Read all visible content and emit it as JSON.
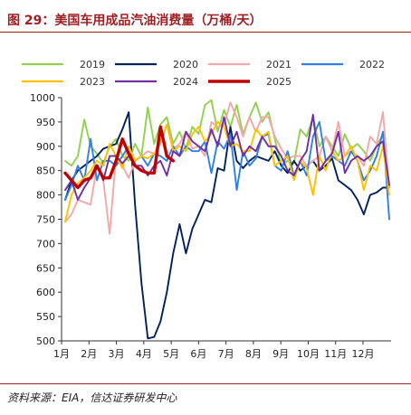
{
  "chart_data": {
    "type": "line",
    "title": "图 29：美国车用成品汽油消费量（万桶/天）",
    "x_tick_labels": [
      "1月",
      "2月",
      "3月",
      "4月",
      "5月",
      "6月",
      "7月",
      "8月",
      "9月",
      "10月",
      "11月",
      "12月"
    ],
    "y_ticks": [
      1000,
      950,
      900,
      850,
      800,
      750,
      700,
      650,
      600,
      550,
      500
    ],
    "ylim": [
      500,
      1000
    ],
    "grid": false,
    "legend_position": "top",
    "series": [
      {
        "name": "2019",
        "color": "#92D050",
        "values": [
          870,
          860,
          880,
          955,
          900,
          885,
          865,
          900,
          915,
          880,
          870,
          905,
          880,
          980,
          905,
          945,
          960,
          905,
          930,
          895,
          940,
          925,
          985,
          995,
          930,
          975,
          940,
          985,
          925,
          960,
          990,
          950,
          970,
          915,
          860,
          870,
          865,
          935,
          920,
          960,
          900,
          920,
          900,
          880,
          925,
          895,
          905,
          890,
          870,
          900,
          925,
          815
        ]
      },
      {
        "name": "2020",
        "color": "#002060",
        "values": [
          790,
          830,
          850,
          860,
          870,
          880,
          895,
          900,
          905,
          935,
          970,
          780,
          620,
          505,
          508,
          540,
          600,
          680,
          740,
          680,
          730,
          760,
          790,
          785,
          855,
          850,
          940,
          870,
          855,
          870,
          880,
          875,
          870,
          890,
          860,
          845,
          870,
          850,
          860,
          870,
          850,
          860,
          875,
          830,
          820,
          810,
          790,
          760,
          800,
          805,
          815,
          815
        ]
      },
      {
        "name": "2021",
        "color": "#F4A7A7",
        "values": [
          745,
          760,
          790,
          785,
          780,
          860,
          830,
          720,
          880,
          860,
          835,
          870,
          880,
          890,
          885,
          905,
          945,
          895,
          905,
          930,
          895,
          900,
          880,
          950,
          940,
          945,
          990,
          960,
          920,
          960,
          930,
          960,
          960,
          920,
          895,
          875,
          880,
          880,
          860,
          870,
          880,
          920,
          890,
          950,
          880,
          890,
          880,
          860,
          920,
          905,
          970,
          815
        ]
      },
      {
        "name": "2022",
        "color": "#2F80E6",
        "values": [
          790,
          820,
          860,
          830,
          915,
          830,
          870,
          870,
          860,
          880,
          900,
          870,
          880,
          860,
          885,
          880,
          870,
          900,
          880,
          900,
          890,
          890,
          910,
          845,
          910,
          895,
          925,
          810,
          890,
          860,
          875,
          920,
          925,
          860,
          850,
          890,
          840,
          870,
          840,
          920,
          950,
          870,
          880,
          870,
          860,
          890,
          870,
          830,
          850,
          880,
          930,
          750
        ]
      },
      {
        "name": "2023",
        "color": "#FFC000",
        "values": [
          745,
          800,
          825,
          835,
          850,
          870,
          860,
          905,
          880,
          855,
          900,
          870,
          880,
          875,
          885,
          910,
          945,
          890,
          900,
          890,
          925,
          940,
          910,
          925,
          950,
          940,
          900,
          905,
          890,
          890,
          935,
          920,
          930,
          860,
          870,
          880,
          830,
          870,
          855,
          800,
          880,
          850,
          890,
          870,
          880,
          900,
          870,
          810,
          860,
          850,
          900,
          800
        ]
      },
      {
        "name": "2024",
        "color": "#7030A0",
        "values": [
          810,
          830,
          790,
          815,
          835,
          860,
          830,
          880,
          880,
          865,
          880,
          860,
          860,
          840,
          860,
          870,
          840,
          890,
          880,
          930,
          910,
          900,
          890,
          935,
          900,
          960,
          900,
          930,
          880,
          900,
          890,
          920,
          900,
          900,
          880,
          850,
          840,
          870,
          890,
          965,
          850,
          870,
          885,
          930,
          845,
          870,
          880,
          870,
          880,
          900,
          910,
          820
        ]
      },
      {
        "name": "2025",
        "color": "#C00000",
        "values": [
          845,
          830,
          815,
          830,
          835,
          860,
          835,
          835,
          870,
          915,
          885,
          860,
          850,
          845,
          845,
          940,
          880,
          870
        ]
      }
    ]
  },
  "source": "资料来源：EIA，信达证券研发中心"
}
